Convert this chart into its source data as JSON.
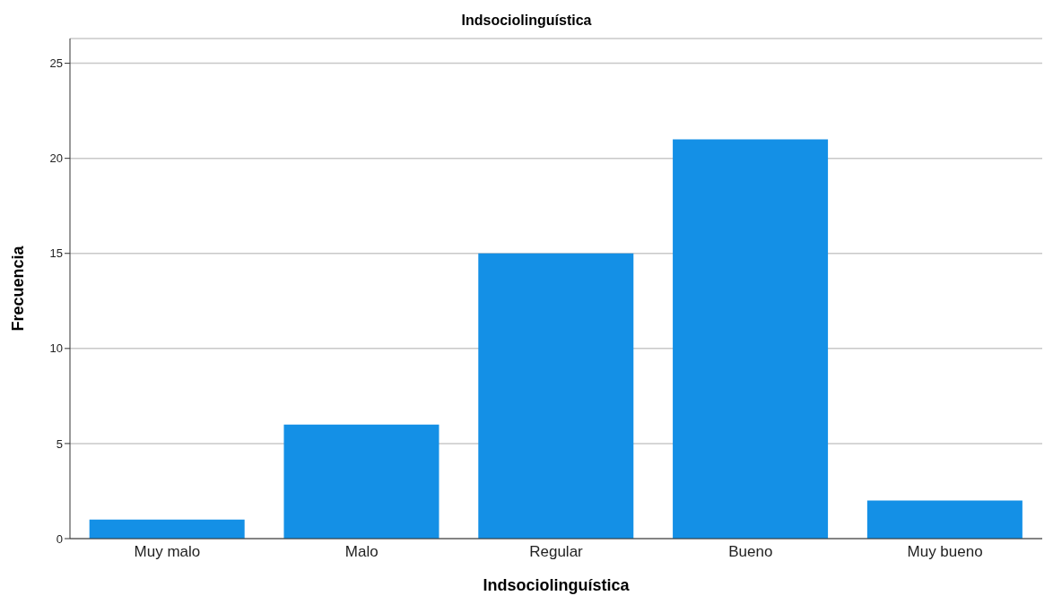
{
  "chart_data": {
    "type": "bar",
    "title": "Indsociolinguística",
    "xlabel": "Indsociolinguística",
    "ylabel": "Frecuencia",
    "categories": [
      "Muy malo",
      "Malo",
      "Regular",
      "Bueno",
      "Muy bueno"
    ],
    "values": [
      1,
      6,
      15,
      21,
      2
    ],
    "color": "#1490e6",
    "ylim": [
      0,
      26.3
    ],
    "yticks": [
      0,
      5,
      10,
      15,
      20,
      25
    ],
    "grid": "y"
  }
}
